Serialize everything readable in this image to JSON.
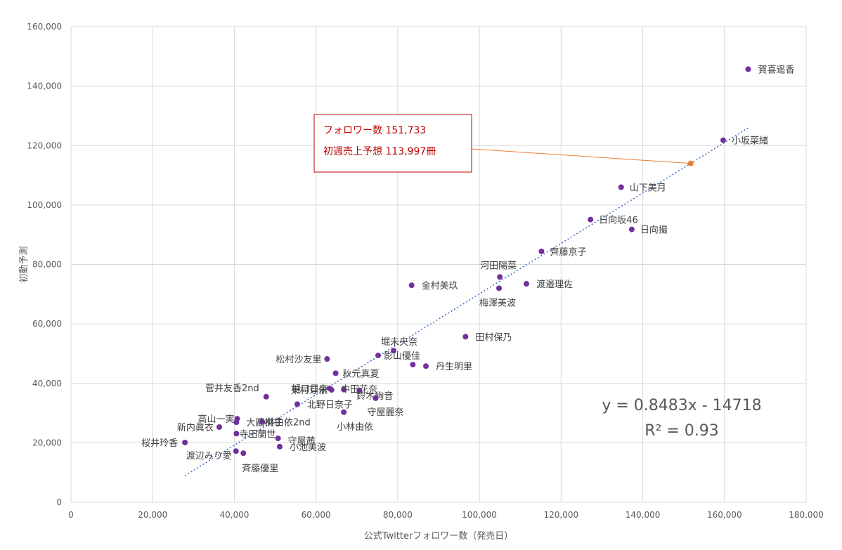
{
  "chart_data": {
    "type": "scatter",
    "xlabel": "公式Twitterフォロワー数（発売日）",
    "ylabel": "初動予測",
    "xlim": [
      0,
      180000
    ],
    "ylim": [
      0,
      160000
    ],
    "x_ticks": [
      "0",
      "20,000",
      "40,000",
      "60,000",
      "80,000",
      "100,000",
      "120,000",
      "140,000",
      "160,000",
      "180,000"
    ],
    "y_ticks": [
      "0",
      "20,000",
      "40,000",
      "60,000",
      "80,000",
      "100,000",
      "120,000",
      "140,000",
      "160,000"
    ],
    "grid": true,
    "series": [
      {
        "color": "#7030a0",
        "points": [
          {
            "label": "賀喜遥香",
            "x": 165800,
            "y": 145700
          },
          {
            "label": "小坂菜緒",
            "x": 159700,
            "y": 121800
          },
          {
            "label": "山下美月",
            "x": 134700,
            "y": 106000
          },
          {
            "label": "日向坂46",
            "x": 127200,
            "y": 95100
          },
          {
            "label": "日向撮",
            "x": 137300,
            "y": 91800
          },
          {
            "label": "齊藤京子",
            "x": 115200,
            "y": 84400
          },
          {
            "label": "河田陽菜",
            "x": 105000,
            "y": 75800
          },
          {
            "label": "渡邉理佐",
            "x": 111500,
            "y": 73500
          },
          {
            "label": "梅澤美波",
            "x": 104800,
            "y": 72000
          },
          {
            "label": "金村美玖",
            "x": 83400,
            "y": 73000
          },
          {
            "label": "田村保乃",
            "x": 96600,
            "y": 55700
          },
          {
            "label": "堀未央奈",
            "x": 79000,
            "y": 51000
          },
          {
            "label": "影山優佳",
            "x": 75200,
            "y": 49400
          },
          {
            "label": "丹生明里",
            "x": 86900,
            "y": 45800
          },
          {
            "label": "",
            "x": 83700,
            "y": 46300
          },
          {
            "label": "松村沙友里",
            "x": 62700,
            "y": 48200
          },
          {
            "label": "秋元真夏",
            "x": 64800,
            "y": 43400
          },
          {
            "label": "樋口日奈",
            "x": 63300,
            "y": 38300
          },
          {
            "label": "東村芽依",
            "x": 63800,
            "y": 37800
          },
          {
            "label": "中田花奈",
            "x": 66800,
            "y": 37900
          },
          {
            "label": "鈴木絢音",
            "x": 70600,
            "y": 37600
          },
          {
            "label": "",
            "x": 74600,
            "y": 35100
          },
          {
            "label": "菅井友香2nd",
            "x": 47800,
            "y": 35500
          },
          {
            "label": "北野日奈子",
            "x": 55400,
            "y": 33000
          },
          {
            "label": "守屋麗奈",
            "x": 74600,
            "y": 35000
          },
          {
            "label": "小林由依",
            "x": 66800,
            "y": 30300
          },
          {
            "label": "高山一実",
            "x": 40700,
            "y": 28100
          },
          {
            "label": "大園桃子",
            "x": 40500,
            "y": 26900
          },
          {
            "label": "小林由依2nd",
            "x": 46800,
            "y": 27100
          },
          {
            "label": "新内眞衣",
            "x": 36300,
            "y": 25300
          },
          {
            "label": "寺田蘭世",
            "x": 40500,
            "y": 23100
          },
          {
            "label": "守屋茜",
            "x": 50700,
            "y": 21500
          },
          {
            "label": "小池美波",
            "x": 51100,
            "y": 18700
          },
          {
            "label": "桜井玲香",
            "x": 27900,
            "y": 20100
          },
          {
            "label": "渡辺みり愛",
            "x": 40400,
            "y": 17200
          },
          {
            "label": "斉藤優里",
            "x": 42200,
            "y": 16500
          }
        ]
      },
      {
        "color": "#ed7d31",
        "points": [
          {
            "label": "",
            "x": 151733,
            "y": 113997
          }
        ]
      }
    ],
    "trendline": {
      "slope": 0.8483,
      "intercept": -14718,
      "x_range": [
        27900,
        165800
      ],
      "color": "#4472c4"
    },
    "equation_lines": [
      "y = 0.8483x - 14718",
      "R² = 0.93"
    ],
    "callout": {
      "line1": "フォロワー数 151,733",
      "line2": "初週売上予想 113,997冊",
      "target": {
        "x": 151733,
        "y": 113997
      },
      "border_color": "#c00000",
      "leader_color": "#ed7d31"
    }
  }
}
